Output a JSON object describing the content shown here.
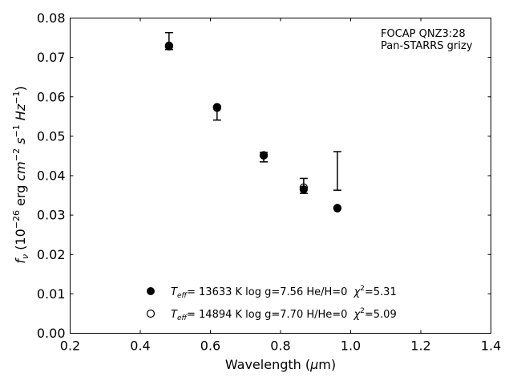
{
  "chart_data": {
    "type": "scatter",
    "xlabel": "Wavelength (μm)",
    "ylabel": "f_ν (10^-26 erg cm^-2 s^-1 Hz^-1)",
    "xlim": [
      0.2,
      1.4
    ],
    "ylim": [
      0.0,
      0.08
    ],
    "xticks": [
      0.2,
      0.4,
      0.6,
      0.8,
      1.0,
      1.2,
      1.4
    ],
    "xtick_labels": [
      "0.2",
      "0.4",
      "0.6",
      "0.8",
      "1.0",
      "1.2",
      "1.4"
    ],
    "yticks": [
      0.0,
      0.01,
      0.02,
      0.03,
      0.04,
      0.05,
      0.06,
      0.07,
      0.08
    ],
    "ytick_labels": [
      "0.00",
      "0.01",
      "0.02",
      "0.03",
      "0.04",
      "0.05",
      "0.06",
      "0.07",
      "0.08"
    ],
    "grid": false,
    "annotation": [
      "FOCAP QNZ3:28",
      "Pan-STARRS grizy"
    ],
    "observed": {
      "x": [
        0.482,
        0.619,
        0.752,
        0.866,
        0.962
      ],
      "y_low": [
        0.072,
        0.0541,
        0.0435,
        0.0355,
        0.0363
      ],
      "y_high": [
        0.0763,
        0.0576,
        0.0459,
        0.0393,
        0.0461
      ]
    },
    "series": [
      {
        "marker": "filled-circle",
        "color": "#000000",
        "x": [
          0.482,
          0.619,
          0.752,
          0.866,
          0.962
        ],
        "y": [
          0.0728,
          0.0572,
          0.0451,
          0.0365,
          0.0317
        ]
      },
      {
        "marker": "open-circle",
        "color": "#000000",
        "x": [
          0.482,
          0.619,
          0.752,
          0.866,
          0.962
        ],
        "y": [
          0.073,
          0.0574,
          0.0452,
          0.037,
          0.0318
        ]
      }
    ],
    "legend": {
      "placement": "lower-center",
      "entries": [
        {
          "teff_sym": "T",
          "teff_sub": "eff",
          "text": "= 13633 K  log g=7.56  He/H=0",
          "chi": "χ",
          "chi_sup": "2",
          "chi_val": "=5.31"
        },
        {
          "teff_sym": "T",
          "teff_sub": "eff",
          "text": "= 14894 K  log g=7.70  H/He=0",
          "chi": "χ",
          "chi_sup": "2",
          "chi_val": "=5.09"
        }
      ]
    }
  }
}
